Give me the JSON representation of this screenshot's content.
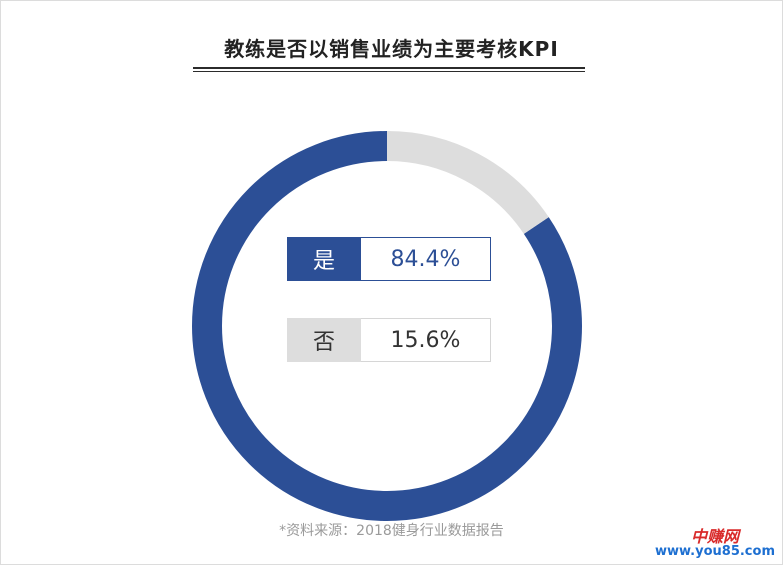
{
  "title": "教练是否以销售业绩为主要考核KPI",
  "chart_data": {
    "type": "pie",
    "style": "donut",
    "title": "教练是否以销售业绩为主要考核KPI",
    "categories": [
      "是",
      "否"
    ],
    "values": [
      84.4,
      15.6
    ],
    "value_labels": [
      "84.4%",
      "15.6%"
    ],
    "colors": [
      "#2c4f96",
      "#dddddd"
    ],
    "legend_placement": "center"
  },
  "legend": [
    {
      "label": "是",
      "value": "84.4%"
    },
    {
      "label": "否",
      "value": "15.6%"
    }
  ],
  "source": "*资料来源：2018健身行业数据报告",
  "watermark": {
    "name": "中赚网",
    "url": "www.you85.com"
  }
}
